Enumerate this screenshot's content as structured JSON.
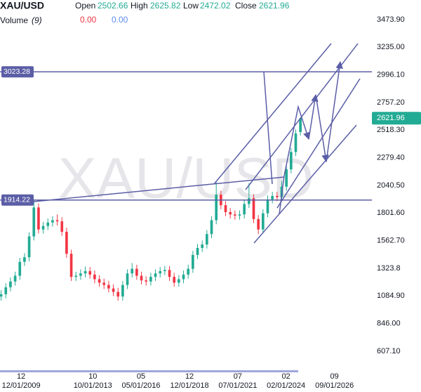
{
  "chart_data": {
    "type": "candlestick",
    "title": "XAU/USD",
    "ohlc_labels": [
      "Open",
      "High",
      "Low",
      "Close"
    ],
    "volume_legend": {
      "label": "Volume",
      "param": "(9)",
      "values": [
        "0.00",
        "0.00"
      ]
    },
    "watermark": "XAU/USD",
    "up_color": "#22ab94",
    "down_color": "#f23645",
    "x": [
      2008.85,
      2009.1,
      2009.35,
      2009.6,
      2009.85,
      2010.1,
      2010.35,
      2010.6,
      2010.85,
      2011.1,
      2011.35,
      2011.6,
      2011.85,
      2012.1,
      2012.35,
      2012.6,
      2012.85,
      2013.1,
      2013.35,
      2013.6,
      2013.85,
      2014.1,
      2014.35,
      2014.6,
      2014.85,
      2015.1,
      2015.35,
      2015.6,
      2015.85,
      2016.1,
      2016.35,
      2016.6,
      2016.85,
      2017.1,
      2017.35,
      2017.6,
      2017.85,
      2018.1,
      2018.35,
      2018.6,
      2018.85,
      2019.1,
      2019.35,
      2019.6,
      2019.85,
      2020.1,
      2020.35,
      2020.6,
      2020.85,
      2021.1,
      2021.35,
      2021.6,
      2021.85,
      2022.1,
      2022.35,
      2022.6,
      2022.85,
      2023.1,
      2023.35,
      2023.6,
      2023.85,
      2024.1,
      2024.35,
      2024.6,
      2024.85
    ],
    "open": [
      1080,
      1100,
      1160,
      1210,
      1260,
      1380,
      1420,
      1600,
      1850,
      1660,
      1690,
      1720,
      1740,
      1730,
      1640,
      1450,
      1250,
      1260,
      1280,
      1300,
      1270,
      1230,
      1200,
      1180,
      1150,
      1120,
      1080,
      1180,
      1280,
      1320,
      1260,
      1220,
      1210,
      1250,
      1280,
      1300,
      1310,
      1250,
      1200,
      1230,
      1270,
      1320,
      1440,
      1500,
      1530,
      1620,
      1740,
      1960,
      1870,
      1810,
      1790,
      1780,
      1790,
      1880,
      1930,
      1750,
      1660,
      1800,
      1920,
      1950,
      1940,
      2030,
      2180,
      2330,
      2502.66
    ],
    "high": [
      1135,
      1195,
      1245,
      1295,
      1415,
      1455,
      1635,
      1920,
      1885,
      1725,
      1755,
      1775,
      1790,
      1765,
      1675,
      1485,
      1295,
      1315,
      1340,
      1335,
      1305,
      1265,
      1235,
      1215,
      1185,
      1155,
      1215,
      1315,
      1370,
      1355,
      1295,
      1255,
      1285,
      1315,
      1335,
      1345,
      1345,
      1285,
      1265,
      1305,
      1355,
      1475,
      1535,
      1565,
      1655,
      1775,
      2070,
      1995,
      1905,
      1845,
      1825,
      1825,
      1915,
      2060,
      1965,
      1785,
      1835,
      1955,
      1985,
      1985,
      2080,
      2215,
      2365,
      2525,
      2625.82
    ],
    "low": [
      1045,
      1065,
      1125,
      1175,
      1225,
      1345,
      1385,
      1565,
      1625,
      1625,
      1655,
      1685,
      1695,
      1605,
      1415,
      1215,
      1215,
      1225,
      1245,
      1235,
      1195,
      1165,
      1145,
      1115,
      1085,
      1045,
      1045,
      1145,
      1245,
      1225,
      1185,
      1175,
      1175,
      1215,
      1245,
      1265,
      1215,
      1165,
      1165,
      1195,
      1235,
      1285,
      1405,
      1465,
      1495,
      1585,
      1705,
      1835,
      1775,
      1755,
      1745,
      1745,
      1755,
      1845,
      1715,
      1620,
      1625,
      1765,
      1885,
      1905,
      1905,
      1995,
      2145,
      2295,
      2472.02
    ],
    "close": [
      1100,
      1160,
      1210,
      1260,
      1380,
      1420,
      1600,
      1850,
      1660,
      1690,
      1720,
      1740,
      1730,
      1640,
      1450,
      1250,
      1260,
      1280,
      1300,
      1270,
      1230,
      1200,
      1180,
      1150,
      1120,
      1080,
      1180,
      1280,
      1320,
      1260,
      1220,
      1210,
      1250,
      1280,
      1300,
      1310,
      1250,
      1200,
      1230,
      1270,
      1320,
      1440,
      1500,
      1530,
      1620,
      1740,
      1960,
      1870,
      1810,
      1790,
      1780,
      1790,
      1880,
      1930,
      1750,
      1660,
      1800,
      1920,
      1950,
      1940,
      2030,
      2180,
      2330,
      2490,
      2621.96
    ],
    "xlim": [
      2008.79,
      2028.67
    ],
    "xticks": [
      {
        "value": 2009.92,
        "label": "12/01/2009"
      },
      {
        "value": 2013.75,
        "label": "10/01/2013"
      },
      {
        "value": 2016.33,
        "label": "05/01/2016"
      },
      {
        "value": 2018.92,
        "label": "12/01/2018"
      },
      {
        "value": 2021.5,
        "label": "07/01/2021"
      },
      {
        "value": 2024.08,
        "label": "02/01/2024"
      },
      {
        "value": 2026.67,
        "label": "09/01/2026"
      }
    ],
    "x_month_labels": [
      "12",
      "10",
      "05",
      "12",
      "07",
      "02",
      "09"
    ],
    "ylim": [
      424.8,
      3644.0
    ],
    "yticks": [
      {
        "value": 607.1,
        "label": "607.10"
      },
      {
        "value": 846,
        "label": "846.00"
      },
      {
        "value": 1084.9,
        "label": "1084.90"
      },
      1323.8,
      {
        "value": 1562.7,
        "label": "1562.70"
      },
      {
        "value": 1801.6,
        "label": "1801.60"
      },
      {
        "value": 2040.5,
        "label": "2040.50"
      },
      {
        "value": 2279.4,
        "label": "2279.40"
      },
      {
        "value": 2518.3,
        "label": "2518.30"
      },
      {
        "value": 2757.2,
        "label": "2757.20"
      },
      {
        "value": 2996.1,
        "label": "2996.10"
      },
      {
        "value": 3235,
        "label": "3235.00"
      },
      {
        "value": 3473.9,
        "label": "3473.90"
      }
    ],
    "hlines": [
      {
        "value": 3023.28,
        "color": "#5b5ea6"
      },
      {
        "value": 1914.22,
        "color": "#5b5ea6"
      }
    ],
    "last_price_color": "#22ab94"
  }
}
